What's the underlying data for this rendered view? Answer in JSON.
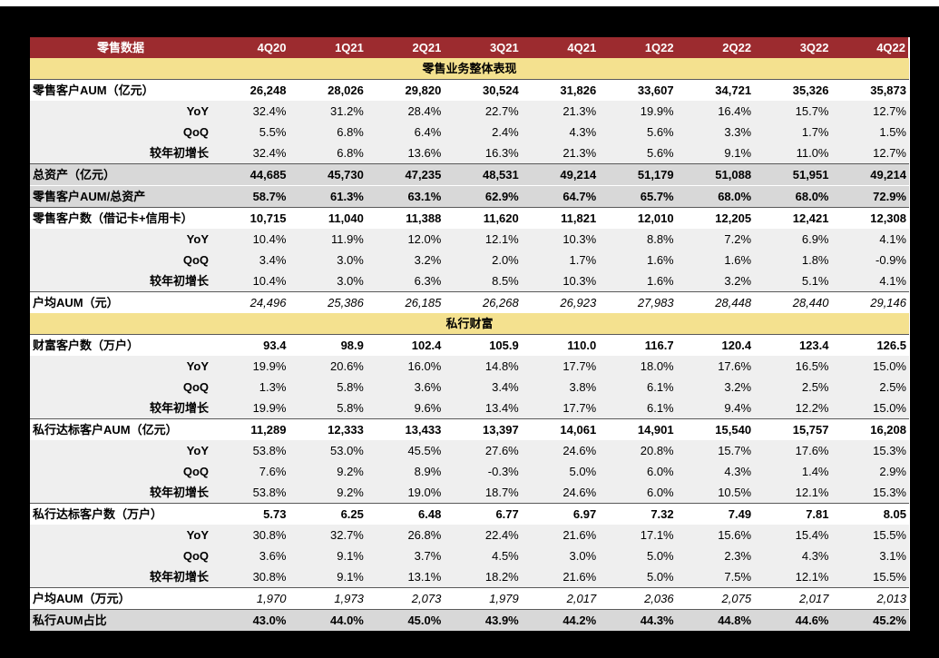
{
  "colors": {
    "background": "#000000",
    "table_bg": "#ffffff",
    "header_red": "#9C2B2F",
    "section_yellow": "#F4E18F",
    "sub_row_gray": "#EFEFEF",
    "highlight_gray": "#D8D8D8",
    "border_dark": "#595959",
    "header_text": "#ffffff",
    "body_text": "#000000"
  },
  "chart_data": {
    "type": "table",
    "title": "零售数据",
    "categories": [
      "4Q20",
      "1Q21",
      "2Q21",
      "3Q21",
      "4Q21",
      "1Q22",
      "2Q22",
      "3Q22",
      "4Q22"
    ],
    "rows": [
      {
        "type": "section",
        "label": "零售业务整体表现",
        "values": []
      },
      {
        "type": "main",
        "label": "零售客户AUM（亿元）",
        "values": [
          "26,248",
          "28,026",
          "29,820",
          "30,524",
          "31,826",
          "33,607",
          "34,721",
          "35,326",
          "35,873"
        ]
      },
      {
        "type": "sub",
        "label": "YoY",
        "values": [
          "32.4%",
          "31.2%",
          "28.4%",
          "22.7%",
          "21.3%",
          "19.9%",
          "16.4%",
          "15.7%",
          "12.7%"
        ]
      },
      {
        "type": "sub",
        "label": "QoQ",
        "values": [
          "5.5%",
          "6.8%",
          "6.4%",
          "2.4%",
          "4.3%",
          "5.6%",
          "3.3%",
          "1.7%",
          "1.5%"
        ]
      },
      {
        "type": "sub",
        "label": "较年初增长",
        "values": [
          "32.4%",
          "6.8%",
          "13.6%",
          "16.3%",
          "21.3%",
          "5.6%",
          "9.1%",
          "11.0%",
          "12.7%"
        ]
      },
      {
        "type": "main-gray",
        "label": "总资产（亿元）",
        "values": [
          "44,685",
          "45,730",
          "47,235",
          "48,531",
          "49,214",
          "51,179",
          "51,088",
          "51,951",
          "49,214"
        ]
      },
      {
        "type": "main-gray",
        "label": "零售客户AUM/总资产",
        "values": [
          "58.7%",
          "61.3%",
          "63.1%",
          "62.9%",
          "64.7%",
          "65.7%",
          "68.0%",
          "68.0%",
          "72.9%"
        ]
      },
      {
        "type": "main",
        "label": "零售客户数（借记卡+信用卡）",
        "values": [
          "10,715",
          "11,040",
          "11,388",
          "11,620",
          "11,821",
          "12,010",
          "12,205",
          "12,421",
          "12,308"
        ]
      },
      {
        "type": "sub",
        "label": "YoY",
        "values": [
          "10.4%",
          "11.9%",
          "12.0%",
          "12.1%",
          "10.3%",
          "8.8%",
          "7.2%",
          "6.9%",
          "4.1%"
        ]
      },
      {
        "type": "sub",
        "label": "QoQ",
        "values": [
          "3.4%",
          "3.0%",
          "3.2%",
          "2.0%",
          "1.7%",
          "1.6%",
          "1.6%",
          "1.8%",
          "-0.9%"
        ]
      },
      {
        "type": "sub",
        "label": "较年初增长",
        "values": [
          "10.4%",
          "3.0%",
          "6.3%",
          "8.5%",
          "10.3%",
          "1.6%",
          "3.2%",
          "5.1%",
          "4.1%"
        ]
      },
      {
        "type": "italic",
        "label": "户均AUM（元）",
        "values": [
          "24,496",
          "25,386",
          "26,185",
          "26,268",
          "26,923",
          "27,983",
          "28,448",
          "28,440",
          "29,146"
        ]
      },
      {
        "type": "section",
        "label": "私行财富",
        "values": []
      },
      {
        "type": "main",
        "label": "财富客户数（万户）",
        "values": [
          "93.4",
          "98.9",
          "102.4",
          "105.9",
          "110.0",
          "116.7",
          "120.4",
          "123.4",
          "126.5"
        ]
      },
      {
        "type": "sub",
        "label": "YoY",
        "values": [
          "19.9%",
          "20.6%",
          "16.0%",
          "14.8%",
          "17.7%",
          "18.0%",
          "17.6%",
          "16.5%",
          "15.0%"
        ]
      },
      {
        "type": "sub",
        "label": "QoQ",
        "values": [
          "1.3%",
          "5.8%",
          "3.6%",
          "3.4%",
          "3.8%",
          "6.1%",
          "3.2%",
          "2.5%",
          "2.5%"
        ]
      },
      {
        "type": "sub",
        "label": "较年初增长",
        "values": [
          "19.9%",
          "5.8%",
          "9.6%",
          "13.4%",
          "17.7%",
          "6.1%",
          "9.4%",
          "12.2%",
          "15.0%"
        ]
      },
      {
        "type": "main",
        "label": "私行达标客户AUM（亿元）",
        "values": [
          "11,289",
          "12,333",
          "13,433",
          "13,397",
          "14,061",
          "14,901",
          "15,540",
          "15,757",
          "16,208"
        ]
      },
      {
        "type": "sub",
        "label": "YoY",
        "values": [
          "53.8%",
          "53.0%",
          "45.5%",
          "27.6%",
          "24.6%",
          "20.8%",
          "15.7%",
          "17.6%",
          "15.3%"
        ]
      },
      {
        "type": "sub",
        "label": "QoQ",
        "values": [
          "7.6%",
          "9.2%",
          "8.9%",
          "-0.3%",
          "5.0%",
          "6.0%",
          "4.3%",
          "1.4%",
          "2.9%"
        ]
      },
      {
        "type": "sub",
        "label": "较年初增长",
        "values": [
          "53.8%",
          "9.2%",
          "19.0%",
          "18.7%",
          "24.6%",
          "6.0%",
          "10.5%",
          "12.1%",
          "15.3%"
        ]
      },
      {
        "type": "main",
        "label": "私行达标客户数（万户）",
        "values": [
          "5.73",
          "6.25",
          "6.48",
          "6.77",
          "6.97",
          "7.32",
          "7.49",
          "7.81",
          "8.05"
        ]
      },
      {
        "type": "sub",
        "label": "YoY",
        "values": [
          "30.8%",
          "32.7%",
          "26.8%",
          "22.4%",
          "21.6%",
          "17.1%",
          "15.6%",
          "15.4%",
          "15.5%"
        ]
      },
      {
        "type": "sub",
        "label": "QoQ",
        "values": [
          "3.6%",
          "9.1%",
          "3.7%",
          "4.5%",
          "3.0%",
          "5.0%",
          "2.3%",
          "4.3%",
          "3.1%"
        ]
      },
      {
        "type": "sub",
        "label": "较年初增长",
        "values": [
          "30.8%",
          "9.1%",
          "13.1%",
          "18.2%",
          "21.6%",
          "5.0%",
          "7.5%",
          "12.1%",
          "15.5%"
        ]
      },
      {
        "type": "italic",
        "label": "户均AUM（万元）",
        "values": [
          "1,970",
          "1,973",
          "2,073",
          "1,979",
          "2,017",
          "2,036",
          "2,075",
          "2,017",
          "2,013"
        ]
      },
      {
        "type": "main-gray",
        "label": "私行AUM占比",
        "values": [
          "43.0%",
          "44.0%",
          "45.0%",
          "43.9%",
          "44.2%",
          "44.3%",
          "44.8%",
          "44.6%",
          "45.2%"
        ]
      }
    ]
  }
}
